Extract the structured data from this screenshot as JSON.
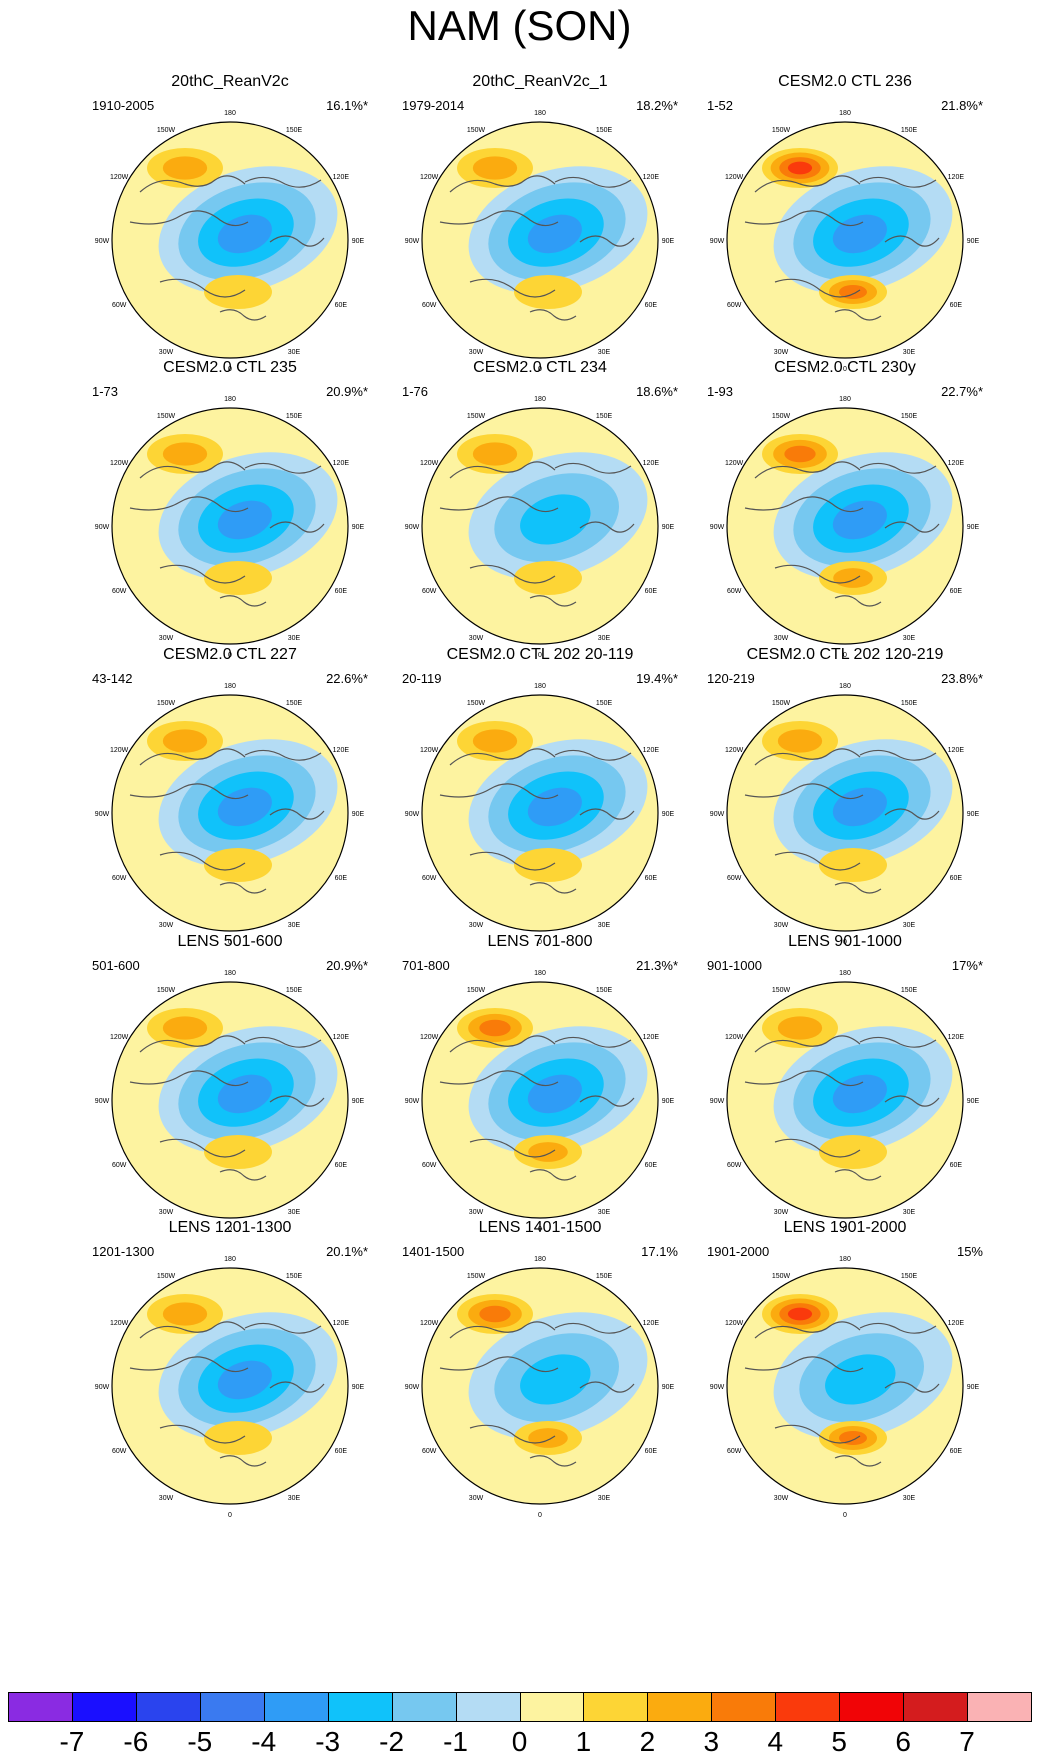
{
  "title": "NAM (SON)",
  "lat_lon_labels": [
    "180",
    "150E",
    "120E",
    "90E",
    "60E",
    "30E",
    "0",
    "30W",
    "60W",
    "90W",
    "120W",
    "150W"
  ],
  "panels": [
    {
      "title": "20thC_ReanV2c",
      "range": "1910-2005",
      "pct": "16.1%*",
      "pos_peak": 2,
      "neg_peak": -4
    },
    {
      "title": "20thC_ReanV2c_1",
      "range": "1979-2014",
      "pct": "18.2%*",
      "pos_peak": 2,
      "neg_peak": -4
    },
    {
      "title": "CESM2.0 CTL 236",
      "range": "1-52",
      "pct": "21.8%*",
      "pos_peak": 4,
      "neg_peak": -4
    },
    {
      "title": "CESM2.0 CTL 235",
      "range": "1-73",
      "pct": "20.9%*",
      "pos_peak": 2,
      "neg_peak": -4
    },
    {
      "title": "CESM2.0 CTL 234",
      "range": "1-76",
      "pct": "18.6%*",
      "pos_peak": 2,
      "neg_peak": -3
    },
    {
      "title": "CESM2.0 CTL 230y",
      "range": "1-93",
      "pct": "22.7%*",
      "pos_peak": 3,
      "neg_peak": -4
    },
    {
      "title": "CESM2.0 CTL 227",
      "range": "43-142",
      "pct": "22.6%*",
      "pos_peak": 2,
      "neg_peak": -4
    },
    {
      "title": "CESM2.0 CTL 202 20-119",
      "range": "20-119",
      "pct": "19.4%*",
      "pos_peak": 2,
      "neg_peak": -4
    },
    {
      "title": "CESM2.0 CTL 202 120-219",
      "range": "120-219",
      "pct": "23.8%*",
      "pos_peak": 2,
      "neg_peak": -4
    },
    {
      "title": "LENS 501-600",
      "range": "501-600",
      "pct": "20.9%*",
      "pos_peak": 2,
      "neg_peak": -4
    },
    {
      "title": "LENS 701-800",
      "range": "701-800",
      "pct": "21.3%*",
      "pos_peak": 3,
      "neg_peak": -4
    },
    {
      "title": "LENS 901-1000",
      "range": "901-1000",
      "pct": "17%*",
      "pos_peak": 2,
      "neg_peak": -4
    },
    {
      "title": "LENS 1201-1300",
      "range": "1201-1300",
      "pct": "20.1%*",
      "pos_peak": 2,
      "neg_peak": -4
    },
    {
      "title": "LENS 1401-1500",
      "range": "1401-1500",
      "pct": "17.1%",
      "pos_peak": 3,
      "neg_peak": -3
    },
    {
      "title": "LENS 1901-2000",
      "range": "1901-2000",
      "pct": "15%",
      "pos_peak": 4,
      "neg_peak": -3
    }
  ],
  "colorbar": {
    "colors": [
      "#8a2be2",
      "#1a0fff",
      "#2a44ee",
      "#3a7af0",
      "#2f9cf6",
      "#10c2fa",
      "#76c8f0",
      "#b4dcf4",
      "#fdf3a0",
      "#fdd535",
      "#fbab0f",
      "#f97b09",
      "#fa3a0c",
      "#f10406",
      "#d41c1e",
      "#fab2b4"
    ],
    "labels": [
      "-7",
      "-6",
      "-5",
      "-4",
      "-3",
      "-2",
      "-1",
      "0",
      "1",
      "2",
      "3",
      "4",
      "5",
      "6",
      "7"
    ]
  },
  "colors": {
    "background_positive": "#fdf3a0",
    "coast": "#555555"
  }
}
